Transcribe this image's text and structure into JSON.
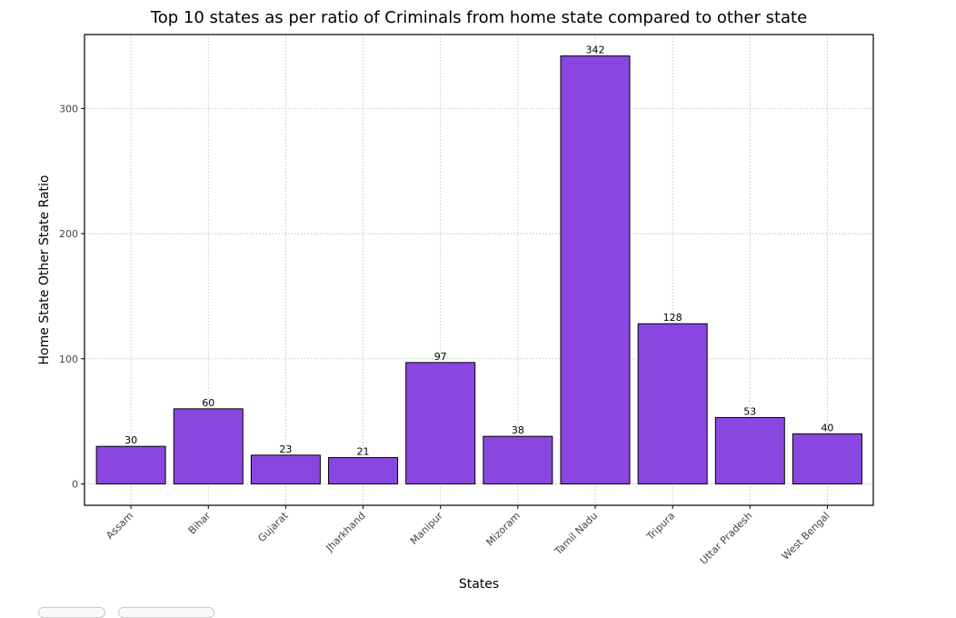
{
  "chart_data": {
    "type": "bar",
    "title": "Top 10 states as per ratio of Criminals from home state compared to other state",
    "xlabel": "States",
    "ylabel": "Home State Other State Ratio",
    "categories": [
      "Assam",
      "Bihar",
      "Gujarat",
      "Jharkhand",
      "Manipur",
      "Mizoram",
      "Tamil Nadu",
      "Tripura",
      "Uttar Pradesh",
      "West Bengal"
    ],
    "values": [
      30,
      60,
      23,
      21,
      97,
      38,
      342,
      128,
      53,
      40
    ],
    "data_labels": [
      "30",
      "60",
      "23",
      "21",
      "97",
      "38",
      "342",
      "128",
      "53",
      "40"
    ],
    "yticks": [
      0,
      100,
      200,
      300
    ],
    "ytick_labels": [
      "0",
      "100",
      "200",
      "300"
    ],
    "ylim": [
      -17.1,
      359.1
    ],
    "grid": true,
    "bar_color": "#8a47e0",
    "edge_color": "#000000"
  }
}
